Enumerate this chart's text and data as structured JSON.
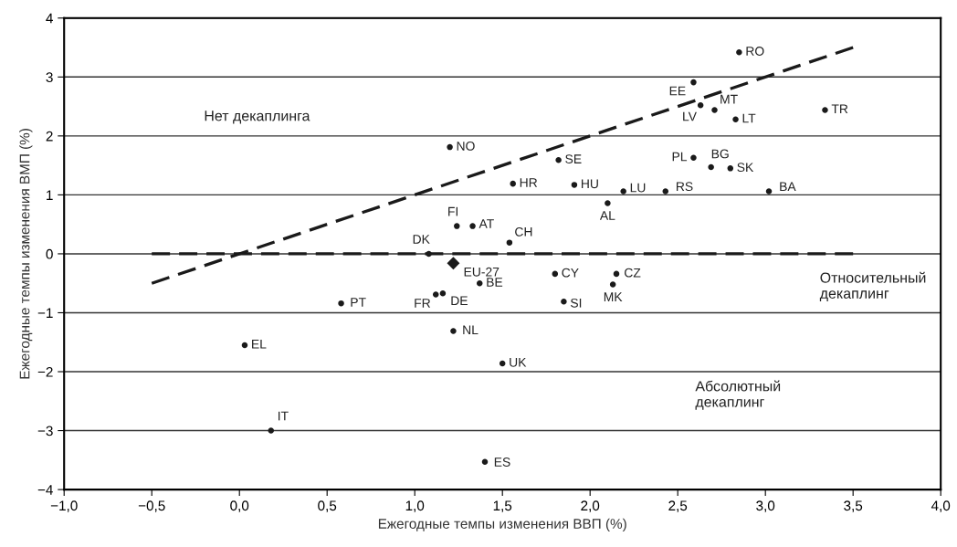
{
  "chart_data": {
    "type": "scatter",
    "xlabel": "Ежегодные темпы изменения ВВП (%)",
    "ylabel": "Ежегодные темпы изменения ВМП (%)",
    "xlim": [
      -1.0,
      4.0
    ],
    "xticks": [
      {
        "value": -1.0,
        "label": "−1,0"
      },
      {
        "value": -0.5,
        "label": "−0,5"
      },
      {
        "value": 0.0,
        "label": "0,0"
      },
      {
        "value": 0.5,
        "label": "0,5"
      },
      {
        "value": 1.0,
        "label": "1,0"
      },
      {
        "value": 1.5,
        "label": "1,5"
      },
      {
        "value": 2.0,
        "label": "2,0"
      },
      {
        "value": 2.5,
        "label": "2,5"
      },
      {
        "value": 3.0,
        "label": "3,0"
      },
      {
        "value": 3.5,
        "label": "3,5"
      },
      {
        "value": 4.0,
        "label": "4,0"
      }
    ],
    "ylim": [
      -4,
      4
    ],
    "yticks": [
      {
        "value": -4,
        "label": "−4"
      },
      {
        "value": -3,
        "label": "−3"
      },
      {
        "value": -2,
        "label": "−2"
      },
      {
        "value": -1,
        "label": "−1"
      },
      0,
      1,
      2,
      3,
      4
    ],
    "grid": "y",
    "annotations": [
      "Нет декаплинга",
      "Относительный\nдекаплинг",
      "Абсолютный\nдекаплинг"
    ],
    "series": [
      {
        "color": "#1a1a1a",
        "marker": "circle",
        "x": [
          2.85,
          2.59,
          2.63,
          2.71,
          2.83,
          3.34,
          1.82,
          2.59,
          2.69,
          2.8,
          1.56,
          1.91,
          2.19,
          2.43,
          3.02,
          2.1,
          1.54,
          1.2,
          1.24,
          1.33,
          1.08,
          1.37,
          1.12,
          1.16,
          0.58,
          1.22,
          0.03,
          1.5,
          0.18,
          1.4,
          1.8,
          2.15,
          2.13,
          1.85
        ],
        "values": [
          3.42,
          2.91,
          2.52,
          2.44,
          2.28,
          2.44,
          1.59,
          1.63,
          1.47,
          1.45,
          1.19,
          1.17,
          1.06,
          1.06,
          1.06,
          0.86,
          0.19,
          1.81,
          0.47,
          0.47,
          0.0,
          -0.5,
          -0.69,
          -0.67,
          -0.84,
          -1.31,
          -1.55,
          -1.86,
          -3.0,
          -3.53,
          -0.34,
          -0.34,
          -0.52,
          -0.81
        ],
        "value_labels": [
          "RO",
          "EE",
          "LV",
          "MT",
          "LT",
          "TR",
          "SE",
          "PL",
          "BG",
          "SK",
          "HR",
          "HU",
          "LU",
          "RS",
          "BA",
          "AL",
          "CH",
          "NO",
          "FI",
          "AT",
          "DK",
          "BE",
          "FR",
          "DE",
          "PT",
          "NL",
          "EL",
          "UK",
          "IT",
          "ES",
          "CY",
          "CZ",
          "MK",
          "SI"
        ]
      },
      {
        "color": "#1a1a1a",
        "marker": "diamond",
        "x": [
          1.22
        ],
        "values": [
          -0.16
        ],
        "value_labels": [
          "EU-27"
        ]
      },
      {
        "type": "line",
        "color": "#1a1a1a",
        "line_style": "dashed",
        "x": [
          -0.5,
          3.5
        ],
        "values": [
          -0.5,
          3.5
        ]
      },
      {
        "type": "line",
        "color": "#1a1a1a",
        "line_style": "dashed",
        "x": [
          -0.5,
          3.5
        ],
        "values": [
          0.0,
          0.0
        ]
      }
    ]
  }
}
